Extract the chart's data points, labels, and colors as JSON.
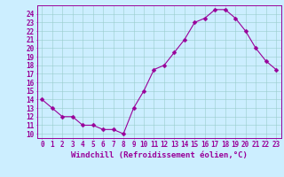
{
  "x": [
    0,
    1,
    2,
    3,
    4,
    5,
    6,
    7,
    8,
    9,
    10,
    11,
    12,
    13,
    14,
    15,
    16,
    17,
    18,
    19,
    20,
    21,
    22,
    23
  ],
  "y": [
    14,
    13,
    12,
    12,
    11,
    11,
    10.5,
    10.5,
    10,
    13,
    15,
    17.5,
    18,
    19.5,
    21,
    23,
    23.5,
    24.5,
    24.5,
    23.5,
    22,
    20,
    18.5,
    17.5
  ],
  "line_color": "#990099",
  "marker_color": "#990099",
  "bg_color": "#cceeff",
  "grid_color": "#99cccc",
  "xlabel": "Windchill (Refroidissement éolien,°C)",
  "xlim": [
    -0.5,
    23.5
  ],
  "ylim": [
    9.5,
    25
  ],
  "yticks": [
    10,
    11,
    12,
    13,
    14,
    15,
    16,
    17,
    18,
    19,
    20,
    21,
    22,
    23,
    24
  ],
  "xticks": [
    0,
    1,
    2,
    3,
    4,
    5,
    6,
    7,
    8,
    9,
    10,
    11,
    12,
    13,
    14,
    15,
    16,
    17,
    18,
    19,
    20,
    21,
    22,
    23
  ],
  "xlabel_fontsize": 6.5,
  "tick_fontsize": 5.5,
  "marker_size": 2.5,
  "line_width": 0.8
}
